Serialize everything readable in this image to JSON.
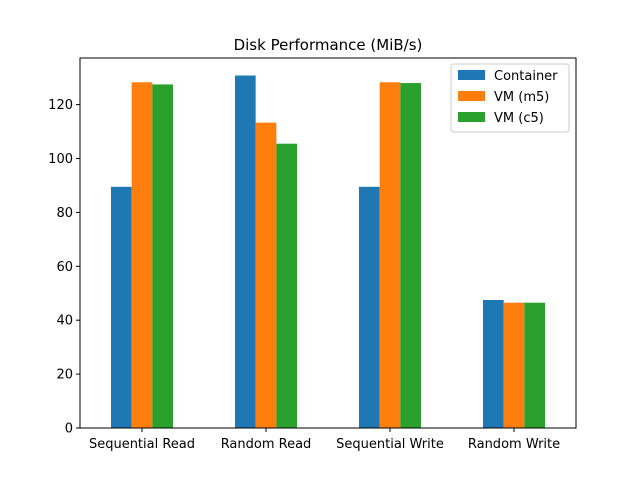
{
  "chart_data": {
    "type": "bar",
    "title": "Disk Performance (MiB/s)",
    "xlabel": "",
    "ylabel": "",
    "categories": [
      "Sequential Read",
      "Random Read",
      "Sequential Write",
      "Random Write"
    ],
    "series": [
      {
        "name": "Container",
        "color": "#1f77b4",
        "values": [
          89.5,
          130.8,
          89.5,
          47.5
        ]
      },
      {
        "name": "VM (m5)",
        "color": "#ff7f0e",
        "values": [
          128.3,
          113.3,
          128.3,
          46.5
        ]
      },
      {
        "name": "VM (c5)",
        "color": "#2ca02c",
        "values": [
          127.5,
          105.5,
          128.0,
          46.5
        ]
      }
    ],
    "ylim": [
      0,
      137.3
    ],
    "yticks": [
      0,
      20,
      40,
      60,
      80,
      100,
      120
    ],
    "grid": false,
    "legend_position": "top-right"
  }
}
